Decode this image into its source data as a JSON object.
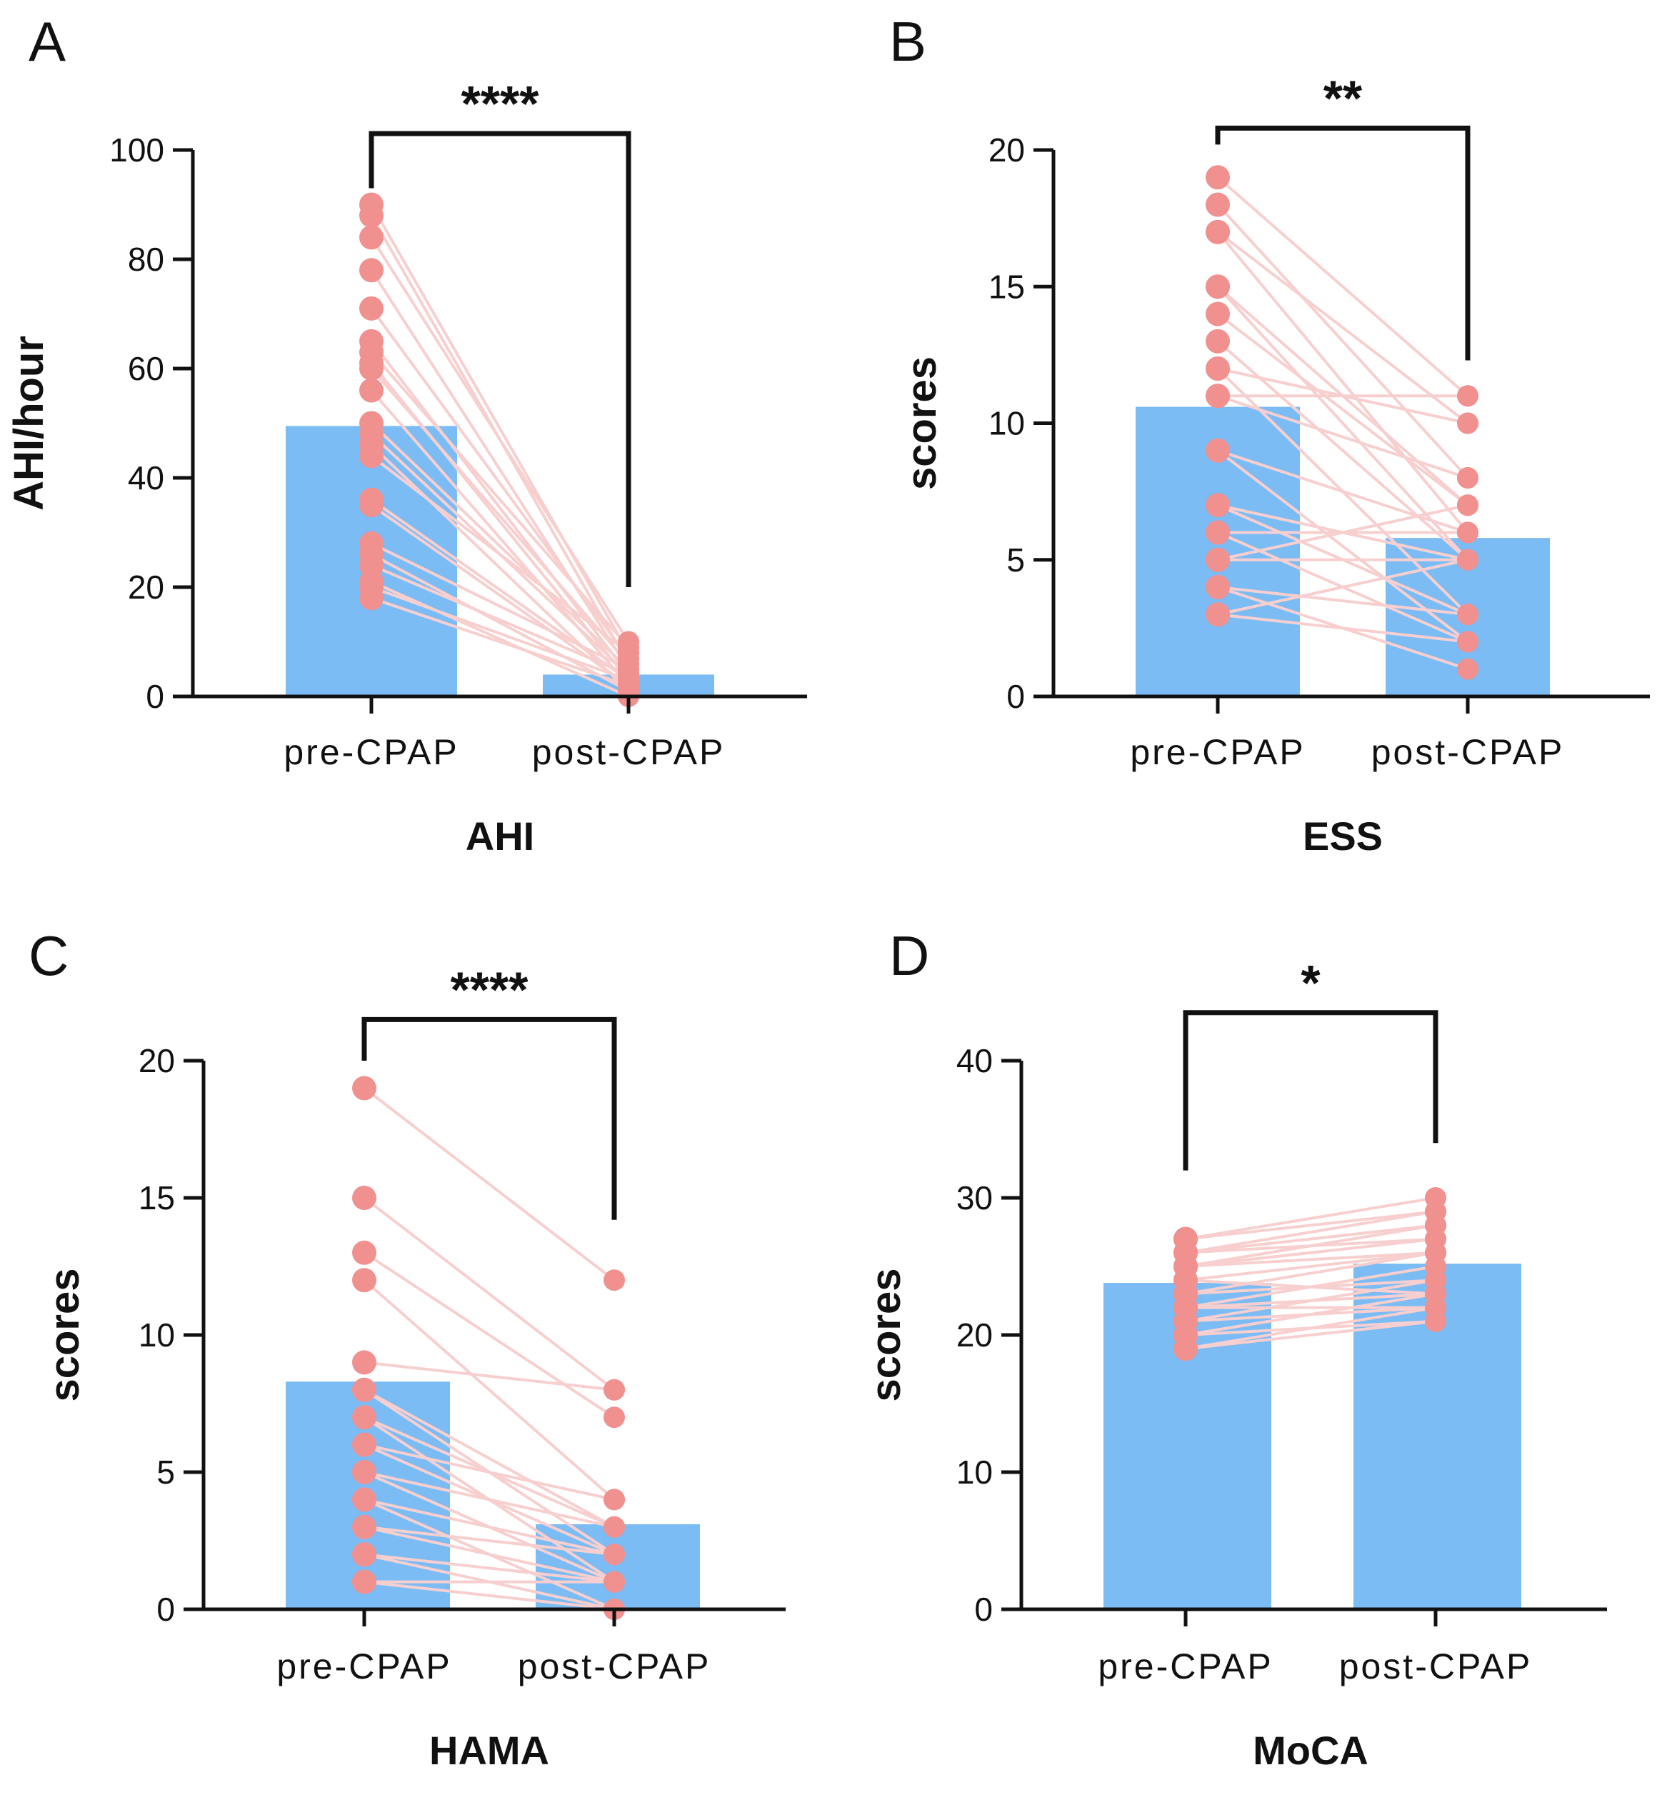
{
  "colors": {
    "bar": "#7bbcf5",
    "point": "#f0918f",
    "line": "#f8cfcf",
    "axis": "#111111"
  },
  "chart_data": [
    {
      "panel": "A",
      "type": "bar",
      "title": "AHI",
      "ylabel": "AHI/hour",
      "categories": [
        "pre-CPAP",
        "post-CPAP"
      ],
      "means": [
        49.5,
        4.0
      ],
      "ylim": [
        0,
        100
      ],
      "yticks": [
        0,
        20,
        40,
        60,
        80,
        100
      ],
      "significance": "****",
      "pairs": [
        [
          90,
          8
        ],
        [
          88,
          6
        ],
        [
          84,
          10
        ],
        [
          78,
          5
        ],
        [
          71,
          7
        ],
        [
          65,
          4
        ],
        [
          63,
          9
        ],
        [
          61,
          3
        ],
        [
          60,
          6
        ],
        [
          56,
          2
        ],
        [
          50,
          5
        ],
        [
          48,
          4
        ],
        [
          46,
          1
        ],
        [
          44,
          8
        ],
        [
          36,
          3
        ],
        [
          35,
          2
        ],
        [
          28,
          5
        ],
        [
          26,
          1
        ],
        [
          24,
          4
        ],
        [
          21,
          0
        ],
        [
          18,
          2
        ],
        [
          20,
          3
        ]
      ],
      "bracket": {
        "left_data": 93,
        "right_data": 20,
        "top_data": 103
      }
    },
    {
      "panel": "B",
      "type": "bar",
      "title": "ESS",
      "ylabel": "scores",
      "categories": [
        "pre-CPAP",
        "post-CPAP"
      ],
      "means": [
        10.6,
        5.8
      ],
      "ylim": [
        0,
        20
      ],
      "yticks": [
        0,
        5,
        10,
        15,
        20
      ],
      "significance": "**",
      "pairs": [
        [
          19,
          11
        ],
        [
          18,
          8
        ],
        [
          17,
          10
        ],
        [
          17,
          6
        ],
        [
          15,
          7
        ],
        [
          15,
          5
        ],
        [
          14,
          7
        ],
        [
          13,
          5
        ],
        [
          12,
          10
        ],
        [
          12,
          3
        ],
        [
          11,
          11
        ],
        [
          11,
          8
        ],
        [
          9,
          6
        ],
        [
          9,
          2
        ],
        [
          7,
          5
        ],
        [
          7,
          3
        ],
        [
          6,
          6
        ],
        [
          6,
          2
        ],
        [
          5,
          7
        ],
        [
          5,
          5
        ],
        [
          4,
          3
        ],
        [
          4,
          1
        ],
        [
          3,
          2
        ],
        [
          3,
          5
        ]
      ],
      "bracket": {
        "left_data": 20.2,
        "right_data": 12.3,
        "top_data": 20.8
      }
    },
    {
      "panel": "C",
      "type": "bar",
      "title": "HAMA",
      "ylabel": "scores",
      "categories": [
        "pre-CPAP",
        "post-CPAP"
      ],
      "means": [
        8.3,
        3.1
      ],
      "ylim": [
        0,
        20
      ],
      "yticks": [
        0,
        5,
        10,
        15,
        20
      ],
      "significance": "****",
      "pairs": [
        [
          19,
          12
        ],
        [
          15,
          8
        ],
        [
          13,
          7
        ],
        [
          12,
          4
        ],
        [
          9,
          8
        ],
        [
          8,
          3
        ],
        [
          8,
          2
        ],
        [
          7,
          3
        ],
        [
          7,
          1
        ],
        [
          6,
          2
        ],
        [
          6,
          4
        ],
        [
          5,
          1
        ],
        [
          5,
          3
        ],
        [
          4,
          2
        ],
        [
          4,
          0
        ],
        [
          3,
          1
        ],
        [
          3,
          2
        ],
        [
          2,
          0
        ],
        [
          2,
          1
        ],
        [
          1,
          0
        ],
        [
          1,
          1
        ]
      ],
      "bracket": {
        "left_data": 20.0,
        "right_data": 14.2,
        "top_data": 21.5
      }
    },
    {
      "panel": "D",
      "type": "bar",
      "title": "MoCA",
      "ylabel": "scores",
      "categories": [
        "pre-CPAP",
        "post-CPAP"
      ],
      "means": [
        23.8,
        25.2
      ],
      "ylim": [
        0,
        40
      ],
      "yticks": [
        0,
        10,
        20,
        30,
        40
      ],
      "significance": "*",
      "pairs": [
        [
          27,
          30
        ],
        [
          27,
          29
        ],
        [
          26,
          28
        ],
        [
          26,
          27
        ],
        [
          26,
          29
        ],
        [
          25,
          26
        ],
        [
          25,
          28
        ],
        [
          25,
          27
        ],
        [
          24,
          26
        ],
        [
          24,
          23
        ],
        [
          23,
          26
        ],
        [
          23,
          24
        ],
        [
          22,
          25
        ],
        [
          22,
          23
        ],
        [
          22,
          22
        ],
        [
          21,
          24
        ],
        [
          21,
          22
        ],
        [
          20,
          23
        ],
        [
          20,
          21
        ],
        [
          19,
          22
        ],
        [
          19,
          21
        ]
      ],
      "bracket": {
        "left_data": 32.0,
        "right_data": 34.0,
        "top_data": 43.5
      }
    }
  ]
}
